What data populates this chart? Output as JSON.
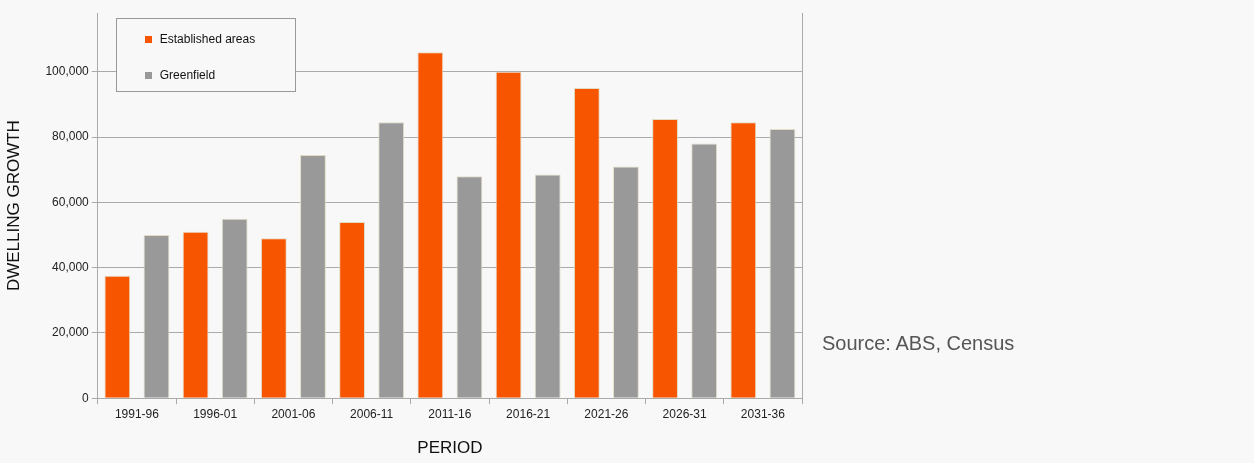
{
  "chart_data": {
    "type": "bar",
    "xlabel": "PERIOD",
    "ylabel": "DWELLING GROWTH",
    "categories": [
      "1991-96",
      "1996-01",
      "2001-06",
      "2006-11",
      "2011-16",
      "2016-21",
      "2021-26",
      "2026-31",
      "2031-36"
    ],
    "series": [
      {
        "name": "Established areas",
        "color": "#f75500",
        "values": [
          37500,
          51000,
          49000,
          54000,
          106000,
          100000,
          95000,
          85500,
          84500
        ]
      },
      {
        "name": "Greenfield",
        "color": "#999999",
        "values": [
          50000,
          55000,
          74500,
          84500,
          68000,
          68500,
          71000,
          78000,
          82500
        ]
      }
    ],
    "ylim": [
      0,
      118000
    ],
    "yticks": [
      {
        "value": 0,
        "label": "0"
      },
      {
        "value": 20000,
        "label": "20,000"
      },
      {
        "value": 40000,
        "label": "40,000"
      },
      {
        "value": 60000,
        "label": "60,000"
      },
      {
        "value": 80000,
        "label": "80,000"
      },
      {
        "value": 100000,
        "label": "100,000"
      }
    ],
    "grid": "y",
    "legend": "top left",
    "annotations": [
      "Source: ABS, Census"
    ]
  }
}
